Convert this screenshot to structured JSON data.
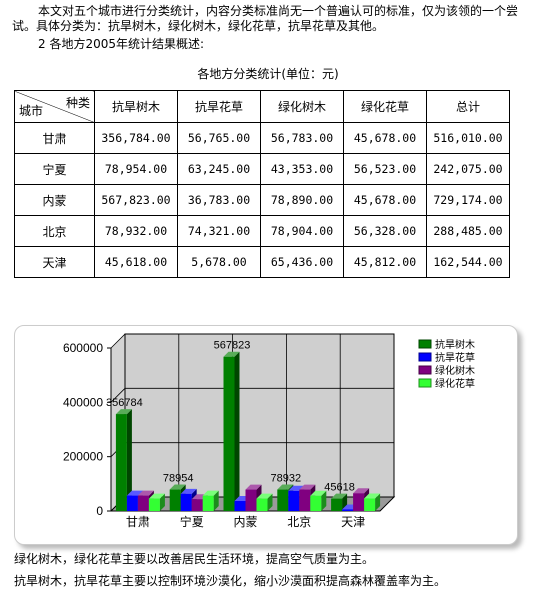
{
  "intro_text": "本文对五个城市进行分类统计，内容分类标准尚无一个普遍认可的标准，仅为该领的一个尝试。具体分类为：抗旱树木，绿化树木，绿化花草，抗旱花草及其他。",
  "section_heading": "2 各地方2005年统计结果概述:",
  "table": {
    "caption": "各地方分类统计(单位：元)",
    "corner_top": "种类",
    "corner_bottom": "城市",
    "headers": [
      "抗旱树木",
      "抗旱花草",
      "绿化树木",
      "绿化花草",
      "总计"
    ],
    "rows": [
      {
        "city": "甘肃",
        "cells": [
          "356,784.00",
          "56,765.00",
          "56,783.00",
          "45,678.00",
          "516,010.00"
        ]
      },
      {
        "city": "宁夏",
        "cells": [
          "78,954.00",
          "63,245.00",
          "43,353.00",
          "56,523.00",
          "242,075.00"
        ]
      },
      {
        "city": "内蒙",
        "cells": [
          "567,823.00",
          "36,783.00",
          "78,890.00",
          "45,678.00",
          "729,174.00"
        ]
      },
      {
        "city": "北京",
        "cells": [
          "78,932.00",
          "74,321.00",
          "78,904.00",
          "56,328.00",
          "288,485.00"
        ]
      },
      {
        "city": "天津",
        "cells": [
          "45,618.00",
          "5,678.00",
          "65,436.00",
          "45,812.00",
          "162,544.00"
        ]
      }
    ]
  },
  "chart_data": {
    "type": "bar",
    "categories": [
      "甘肃",
      "宁夏",
      "内蒙",
      "北京",
      "天津"
    ],
    "series": [
      {
        "name": "抗旱树木",
        "color": "#008000",
        "values": [
          356784,
          78954,
          567823,
          78932,
          45618
        ]
      },
      {
        "name": "抗旱花草",
        "color": "#0000ff",
        "values": [
          56765,
          63245,
          36783,
          74321,
          5678
        ]
      },
      {
        "name": "绿化树木",
        "color": "#800080",
        "values": [
          56783,
          43353,
          78890,
          78904,
          65436
        ]
      },
      {
        "name": "绿化花草",
        "color": "#33ff33",
        "values": [
          45678,
          56523,
          45678,
          56328,
          45812
        ]
      }
    ],
    "data_labels": [
      {
        "text": "356784",
        "category": "甘肃"
      },
      {
        "text": "78954",
        "category": "宁夏"
      },
      {
        "text": "567823",
        "category": "内蒙"
      },
      {
        "text": "78932",
        "category": "北京"
      },
      {
        "text": "45618",
        "category": "天津"
      }
    ],
    "ylim": [
      0,
      600000
    ],
    "yticks": [
      0,
      200000,
      400000,
      600000
    ],
    "grid": true,
    "legend": "top-right",
    "style": "3d"
  },
  "note_1": "绿化树木，绿化花草主要以改善居民生活环境，提高空气质量为主。",
  "note_2": "抗旱树木，抗旱花草主要以控制环境沙漠化，缩小沙漠面积提高森林覆盖率为主。"
}
